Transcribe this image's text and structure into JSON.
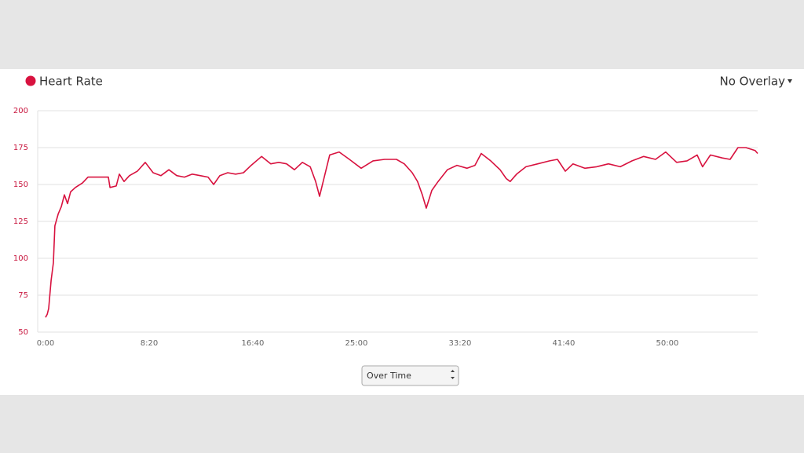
{
  "chart_data": {
    "type": "line",
    "series": [
      {
        "name": "Heart Rate",
        "color": "#d8123f",
        "x": [
          0,
          8,
          15,
          27,
          38,
          45,
          61,
          76,
          91,
          106,
          121,
          144,
          178,
          205,
          303,
          311,
          341,
          356,
          379,
          405,
          443,
          481,
          519,
          557,
          595,
          633,
          670,
          708,
          746,
          784,
          811,
          841,
          879,
          917,
          955,
          992,
          1042,
          1087,
          1125,
          1163,
          1201,
          1239,
          1277,
          1303,
          1322,
          1345,
          1371,
          1417,
          1466,
          1523,
          1580,
          1636,
          1693,
          1731,
          1769,
          1795,
          1818,
          1837,
          1864,
          1894,
          1939,
          1985,
          2034,
          2072,
          2102,
          2148,
          2193,
          2223,
          2242,
          2273,
          2318,
          2375,
          2432,
          2470,
          2508,
          2545,
          2602,
          2659,
          2716,
          2773,
          2830,
          2886,
          2943,
          2992,
          3045,
          3095,
          3144,
          3170,
          3208,
          3265,
          3303,
          3341,
          3379,
          3424,
          3436
        ],
        "values": [
          60,
          62,
          66,
          85,
          97,
          122,
          130,
          135,
          143,
          137,
          145,
          148,
          151,
          155,
          155,
          148,
          149,
          157,
          152,
          156,
          159,
          165,
          158,
          156,
          160,
          156,
          155,
          157,
          156,
          155,
          150,
          156,
          158,
          157,
          158,
          163,
          169,
          164,
          165,
          164,
          160,
          165,
          162,
          152,
          142,
          155,
          170,
          172,
          167,
          161,
          166,
          167,
          167,
          164,
          158,
          152,
          143,
          134,
          146,
          152,
          160,
          163,
          161,
          163,
          171,
          166,
          160,
          154,
          152,
          157,
          162,
          164,
          166,
          167,
          159,
          164,
          161,
          162,
          164,
          162,
          166,
          169,
          167,
          172,
          165,
          166,
          170,
          162,
          170,
          168,
          167,
          175,
          175,
          173,
          171
        ]
      }
    ],
    "xlim": [
      0,
      3436
    ],
    "xticks": [
      {
        "value": 0,
        "label": "0:00"
      },
      {
        "value": 500,
        "label": "8:20"
      },
      {
        "value": 1000,
        "label": "16:40"
      },
      {
        "value": 1500,
        "label": "25:00"
      },
      {
        "value": 2000,
        "label": "33:20"
      },
      {
        "value": 2500,
        "label": "41:40"
      },
      {
        "value": 3000,
        "label": "50:00"
      }
    ],
    "ylim": [
      50,
      200
    ],
    "yticks": [
      50,
      75,
      100,
      125,
      150,
      175,
      200
    ],
    "grid": true
  },
  "controls": {
    "overlay": "No Overlay",
    "view": "Over Time"
  }
}
